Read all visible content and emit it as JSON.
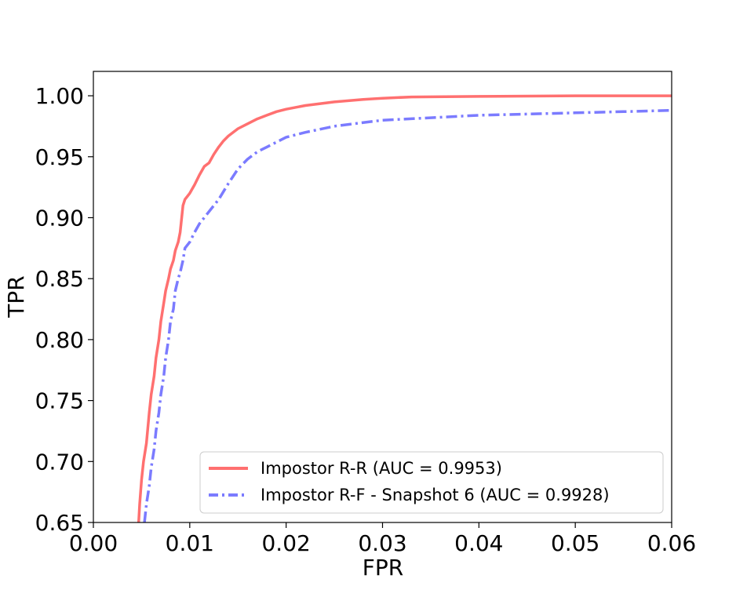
{
  "chart_data": {
    "type": "line",
    "title": "",
    "xlabel": "FPR",
    "ylabel": "TPR",
    "xlim": [
      0.0,
      0.06
    ],
    "ylim": [
      0.65,
      1.02
    ],
    "xticks": [
      0.0,
      0.01,
      0.02,
      0.03,
      0.04,
      0.05,
      0.06
    ],
    "xtick_labels": [
      "0.00",
      "0.01",
      "0.02",
      "0.03",
      "0.04",
      "0.05",
      "0.06"
    ],
    "yticks": [
      0.65,
      0.7,
      0.75,
      0.8,
      0.85,
      0.9,
      0.95,
      1.0
    ],
    "ytick_labels": [
      "0.65",
      "0.70",
      "0.75",
      "0.80",
      "0.85",
      "0.90",
      "0.95",
      "1.00"
    ],
    "grid": false,
    "legend_position": "lower-right",
    "series": [
      {
        "name": "Impostor R-R (AUC = 0.9953)",
        "color": "#ff7070",
        "style": "solid",
        "x": [
          0.0047,
          0.0048,
          0.005,
          0.0052,
          0.0055,
          0.0058,
          0.006,
          0.0063,
          0.0065,
          0.0068,
          0.007,
          0.0073,
          0.0075,
          0.0078,
          0.008,
          0.0083,
          0.0085,
          0.0088,
          0.009,
          0.0093,
          0.0095,
          0.01,
          0.0105,
          0.011,
          0.0115,
          0.012,
          0.0125,
          0.013,
          0.0135,
          0.014,
          0.015,
          0.016,
          0.017,
          0.018,
          0.019,
          0.02,
          0.022,
          0.025,
          0.028,
          0.03,
          0.033,
          0.04,
          0.05,
          0.06
        ],
        "y": [
          0.65,
          0.665,
          0.685,
          0.7,
          0.715,
          0.74,
          0.755,
          0.77,
          0.785,
          0.8,
          0.815,
          0.83,
          0.84,
          0.85,
          0.858,
          0.865,
          0.873,
          0.88,
          0.888,
          0.91,
          0.915,
          0.92,
          0.927,
          0.935,
          0.942,
          0.945,
          0.952,
          0.958,
          0.963,
          0.967,
          0.973,
          0.977,
          0.981,
          0.984,
          0.987,
          0.989,
          0.992,
          0.995,
          0.997,
          0.998,
          0.999,
          0.9995,
          1.0,
          1.0
        ]
      },
      {
        "name": "Impostor R-F - Snapshot 6 (AUC = 0.9928)",
        "color": "#7b7bff",
        "style": "dashdot",
        "x": [
          0.0053,
          0.0055,
          0.0058,
          0.006,
          0.0063,
          0.0065,
          0.0068,
          0.007,
          0.0073,
          0.0075,
          0.0078,
          0.008,
          0.0083,
          0.0085,
          0.0088,
          0.009,
          0.0093,
          0.0095,
          0.01,
          0.0105,
          0.011,
          0.012,
          0.013,
          0.014,
          0.015,
          0.016,
          0.017,
          0.018,
          0.019,
          0.02,
          0.022,
          0.025,
          0.03,
          0.035,
          0.04,
          0.045,
          0.05,
          0.055,
          0.06
        ],
        "y": [
          0.65,
          0.665,
          0.68,
          0.695,
          0.71,
          0.725,
          0.74,
          0.755,
          0.77,
          0.785,
          0.8,
          0.815,
          0.825,
          0.84,
          0.85,
          0.855,
          0.865,
          0.875,
          0.88,
          0.888,
          0.895,
          0.905,
          0.915,
          0.928,
          0.94,
          0.948,
          0.954,
          0.958,
          0.962,
          0.966,
          0.97,
          0.975,
          0.98,
          0.982,
          0.984,
          0.985,
          0.986,
          0.987,
          0.988
        ]
      }
    ]
  }
}
